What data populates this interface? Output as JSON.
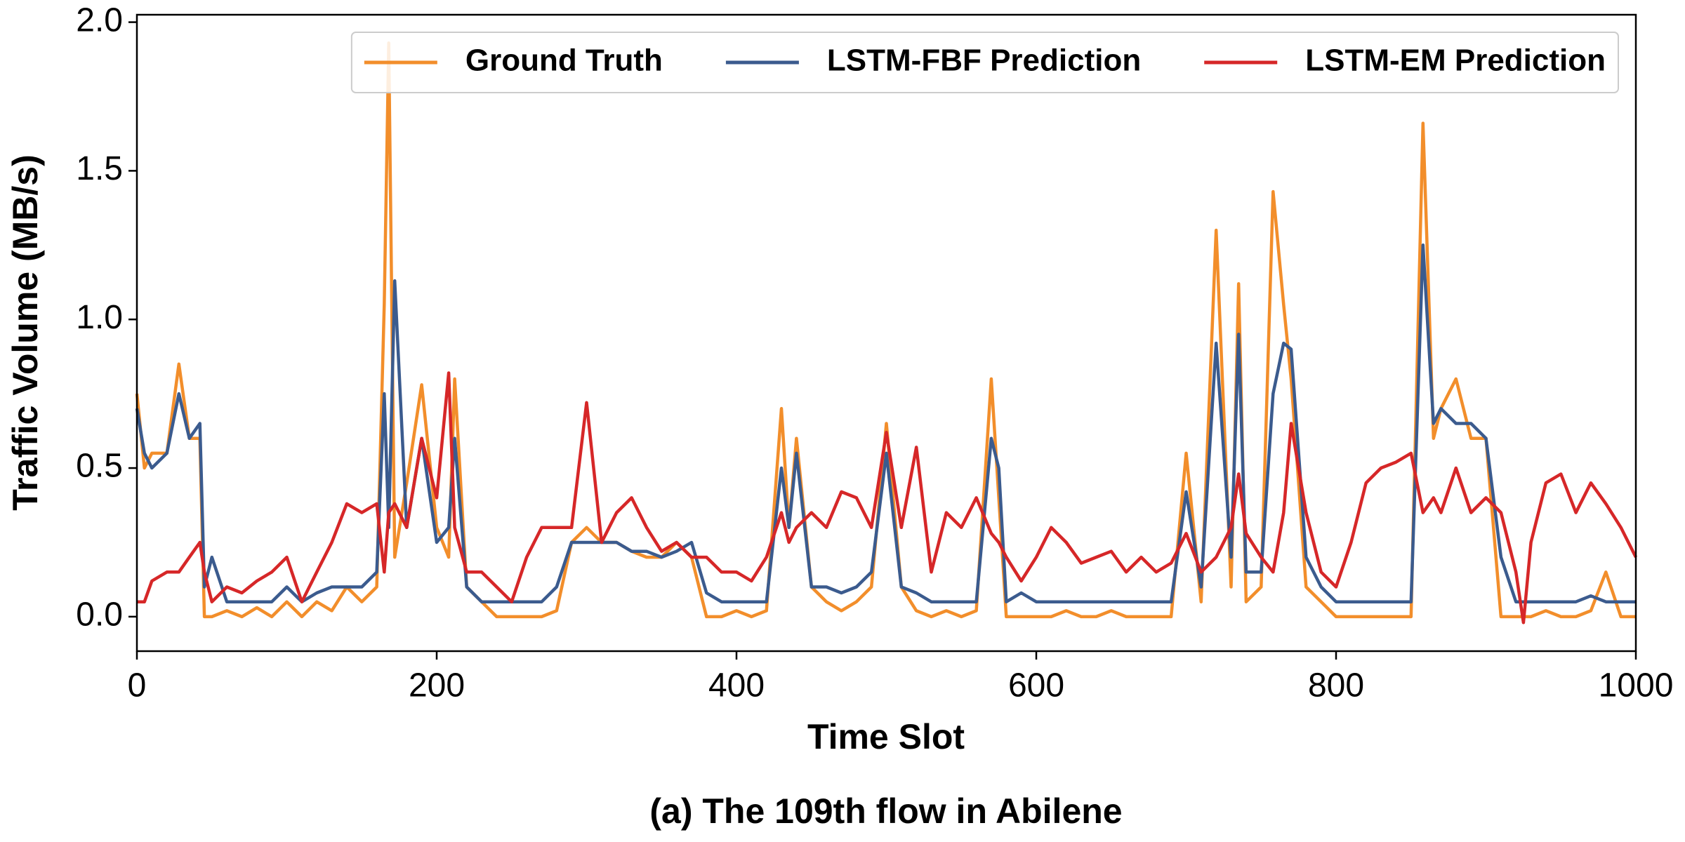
{
  "chart_data": {
    "type": "line",
    "title": "(a) The 109th flow in Abilene",
    "x_label": "Time Slot",
    "y_label": "Traffic Volume (MB/s)",
    "x": [
      0,
      5,
      10,
      20,
      28,
      35,
      42,
      45,
      50,
      60,
      70,
      80,
      90,
      100,
      110,
      120,
      130,
      140,
      150,
      160,
      165,
      168,
      172,
      180,
      190,
      200,
      208,
      212,
      220,
      230,
      240,
      250,
      260,
      270,
      280,
      290,
      300,
      310,
      320,
      330,
      340,
      350,
      360,
      370,
      380,
      390,
      400,
      410,
      420,
      430,
      435,
      440,
      450,
      460,
      470,
      480,
      490,
      500,
      510,
      520,
      530,
      540,
      550,
      560,
      570,
      575,
      580,
      590,
      600,
      610,
      620,
      630,
      640,
      650,
      660,
      670,
      680,
      690,
      700,
      710,
      720,
      730,
      735,
      740,
      750,
      758,
      765,
      770,
      780,
      790,
      800,
      810,
      820,
      830,
      840,
      850,
      858,
      865,
      870,
      880,
      890,
      900,
      910,
      920,
      925,
      930,
      940,
      950,
      960,
      970,
      980,
      990,
      1000
    ],
    "series": [
      {
        "name": "Ground Truth",
        "color": "#f28e2b",
        "values": [
          0.75,
          0.5,
          0.55,
          0.55,
          0.85,
          0.6,
          0.6,
          0,
          0,
          0.02,
          0,
          0.03,
          0,
          0.05,
          0,
          0.05,
          0.02,
          0.1,
          0.05,
          0.1,
          1.05,
          1.93,
          0.2,
          0.45,
          0.78,
          0.3,
          0.2,
          0.8,
          0.1,
          0.05,
          0,
          0,
          0,
          0,
          0.02,
          0.25,
          0.3,
          0.25,
          0.25,
          0.22,
          0.2,
          0.2,
          0.25,
          0.2,
          0,
          0,
          0.02,
          0,
          0.02,
          0.7,
          0.3,
          0.6,
          0.1,
          0.05,
          0.02,
          0.05,
          0.1,
          0.65,
          0.1,
          0.02,
          0,
          0.02,
          0,
          0.02,
          0.8,
          0.4,
          0,
          0,
          0,
          0,
          0.02,
          0,
          0,
          0.02,
          0,
          0,
          0,
          0,
          0.55,
          0.05,
          1.3,
          0.1,
          1.12,
          0.05,
          0.1,
          1.43,
          1.05,
          0.8,
          0.1,
          0.05,
          0,
          0,
          0,
          0,
          0,
          0,
          1.66,
          0.6,
          0.7,
          0.8,
          0.6,
          0.6,
          0,
          0,
          0,
          0,
          0.02,
          0,
          0,
          0.02,
          0.15,
          0,
          0
        ]
      },
      {
        "name": "LSTM-FBF Prediction",
        "color": "#3b5b8e",
        "values": [
          0.7,
          0.55,
          0.5,
          0.55,
          0.75,
          0.6,
          0.65,
          0.1,
          0.2,
          0.05,
          0.05,
          0.05,
          0.05,
          0.1,
          0.05,
          0.08,
          0.1,
          0.1,
          0.1,
          0.15,
          0.75,
          0.3,
          1.13,
          0.3,
          0.6,
          0.25,
          0.3,
          0.6,
          0.1,
          0.05,
          0.05,
          0.05,
          0.05,
          0.05,
          0.1,
          0.25,
          0.25,
          0.25,
          0.25,
          0.22,
          0.22,
          0.2,
          0.22,
          0.25,
          0.08,
          0.05,
          0.05,
          0.05,
          0.05,
          0.5,
          0.3,
          0.55,
          0.1,
          0.1,
          0.08,
          0.1,
          0.15,
          0.55,
          0.1,
          0.08,
          0.05,
          0.05,
          0.05,
          0.05,
          0.6,
          0.5,
          0.05,
          0.08,
          0.05,
          0.05,
          0.05,
          0.05,
          0.05,
          0.05,
          0.05,
          0.05,
          0.05,
          0.05,
          0.42,
          0.1,
          0.92,
          0.2,
          0.95,
          0.15,
          0.15,
          0.75,
          0.92,
          0.9,
          0.2,
          0.1,
          0.05,
          0.05,
          0.05,
          0.05,
          0.05,
          0.05,
          1.25,
          0.65,
          0.7,
          0.65,
          0.65,
          0.6,
          0.2,
          0.05,
          0.05,
          0.05,
          0.05,
          0.05,
          0.05,
          0.07,
          0.05,
          0.05,
          0.05
        ]
      },
      {
        "name": "LSTM-EM Prediction",
        "color": "#d62728",
        "values": [
          0.05,
          0.05,
          0.12,
          0.15,
          0.15,
          0.2,
          0.25,
          0.15,
          0.05,
          0.1,
          0.08,
          0.12,
          0.15,
          0.2,
          0.05,
          0.15,
          0.25,
          0.38,
          0.35,
          0.38,
          0.15,
          0.35,
          0.38,
          0.3,
          0.6,
          0.4,
          0.82,
          0.3,
          0.15,
          0.15,
          0.1,
          0.05,
          0.2,
          0.3,
          0.3,
          0.3,
          0.72,
          0.25,
          0.35,
          0.4,
          0.3,
          0.22,
          0.25,
          0.2,
          0.2,
          0.15,
          0.15,
          0.12,
          0.2,
          0.35,
          0.25,
          0.3,
          0.35,
          0.3,
          0.42,
          0.4,
          0.3,
          0.62,
          0.3,
          0.57,
          0.15,
          0.35,
          0.3,
          0.4,
          0.28,
          0.25,
          0.2,
          0.12,
          0.2,
          0.3,
          0.25,
          0.18,
          0.2,
          0.22,
          0.15,
          0.2,
          0.15,
          0.18,
          0.28,
          0.15,
          0.2,
          0.3,
          0.48,
          0.28,
          0.2,
          0.15,
          0.35,
          0.65,
          0.35,
          0.15,
          0.1,
          0.25,
          0.45,
          0.5,
          0.52,
          0.55,
          0.35,
          0.4,
          0.35,
          0.5,
          0.35,
          0.4,
          0.35,
          0.15,
          -0.02,
          0.25,
          0.45,
          0.48,
          0.35,
          0.45,
          0.38,
          0.3,
          0.2
        ]
      }
    ],
    "xlim": [
      0,
      1000
    ],
    "xticks": [
      0,
      200,
      400,
      600,
      800,
      1000
    ],
    "ylim": [
      -0.116,
      2.025
    ],
    "yticks": [
      {
        "value": 0,
        "label": "0.0"
      },
      0.5,
      {
        "value": 1,
        "label": "1.0"
      },
      1.5,
      {
        "value": 2,
        "label": "2.0"
      }
    ],
    "legend_loc": "upper right",
    "grid": false
  }
}
